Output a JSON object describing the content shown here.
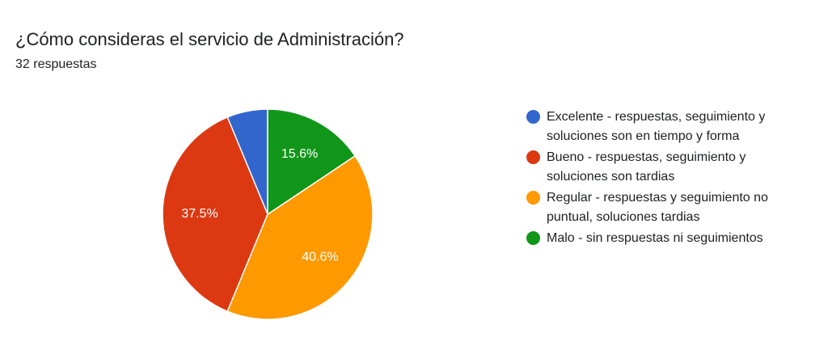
{
  "header": {
    "title": "¿Cómo consideras el servicio de Administración?",
    "subtitle": "32 respuestas"
  },
  "chart_data": {
    "type": "pie",
    "title": "¿Cómo consideras el servicio de Administración?",
    "total_responses": 32,
    "slices": [
      {
        "name": "Excelente - respuestas, seguimiento y soluciones son en tiempo y forma",
        "value": 2,
        "percent": 6.3,
        "label": "",
        "color": "#3366cc"
      },
      {
        "name": "Bueno - respuestas, seguimiento y soluciones son tardias",
        "value": 12,
        "percent": 37.5,
        "label": "37.5%",
        "color": "#dc3912"
      },
      {
        "name": "Regular - respuestas y seguimiento no puntual, soluciones tardias",
        "value": 13,
        "percent": 40.6,
        "label": "40.6%",
        "color": "#ff9900"
      },
      {
        "name": "Malo - sin respuestas ni seguimientos",
        "value": 5,
        "percent": 15.6,
        "label": "15.6%",
        "color": "#109618"
      }
    ],
    "legend_position": "right"
  }
}
